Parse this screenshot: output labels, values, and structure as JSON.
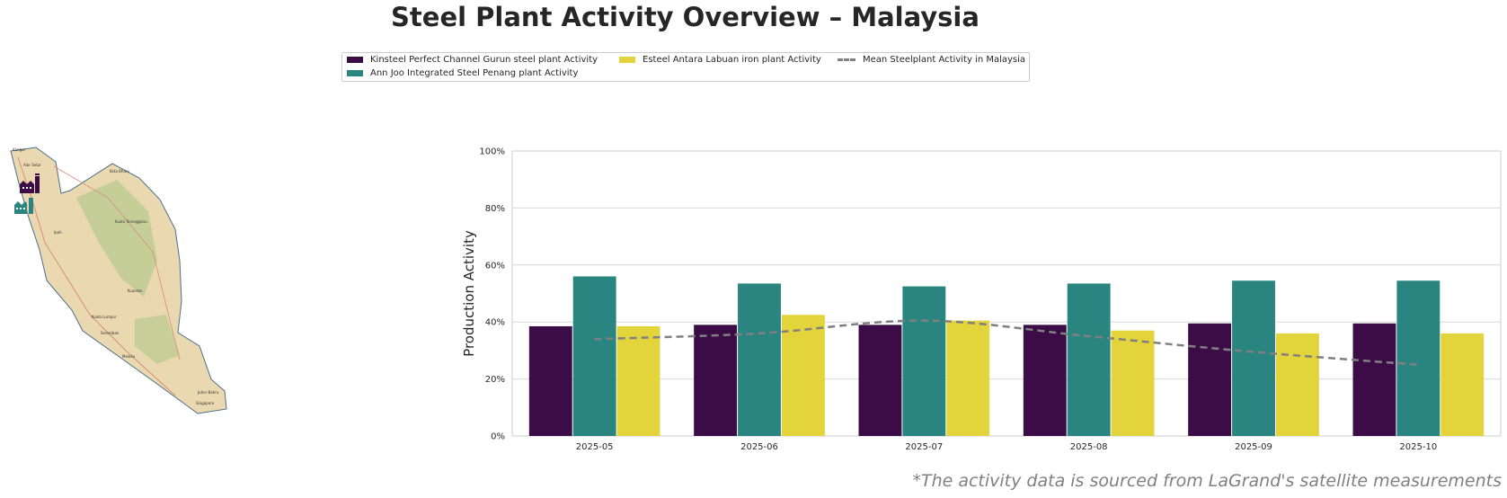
{
  "title": "Steel Plant Activity Overview – Malaysia",
  "legend": {
    "items": [
      {
        "label": "Kinsteel Perfect Channel Gurun steel plant Activity",
        "color": "#3b0c45",
        "kind": "bar"
      },
      {
        "label": "Ann Joo Integrated Steel Penang plant Activity",
        "color": "#2a8580",
        "kind": "bar"
      },
      {
        "label": "Esteel Antara Labuan iron plant Activity",
        "color": "#e4d43c",
        "kind": "bar"
      },
      {
        "label": "Mean Steelplant Activity in Malaysia",
        "color": "#808080",
        "kind": "dashed-line"
      }
    ]
  },
  "map": {
    "labels": [
      "Kangar",
      "Alor Setar",
      "Kota Bharu",
      "Kuala Terengganu",
      "Ipoh",
      "Kuantan",
      "Kuala Lumpur",
      "Seremban",
      "Melaka",
      "Johor Bahru",
      "Singapore"
    ]
  },
  "chart_data": {
    "type": "bar",
    "title": "",
    "xlabel": "",
    "ylabel": "Production Activity",
    "ylim": [
      0,
      100
    ],
    "yticks": [
      "0%",
      "20%",
      "40%",
      "60%",
      "80%",
      "100%"
    ],
    "grid": true,
    "categories": [
      "2025-05",
      "2025-06",
      "2025-07",
      "2025-08",
      "2025-09",
      "2025-10"
    ],
    "series": [
      {
        "name": "Kinsteel Perfect Channel Gurun steel plant Activity",
        "color": "#3b0c45",
        "values": [
          38.5,
          39,
          39,
          39,
          39.5,
          39.5
        ]
      },
      {
        "name": "Ann Joo Integrated Steel Penang plant Activity",
        "color": "#2a8580",
        "values": [
          56,
          53.5,
          52.5,
          53.5,
          54.5,
          54.5
        ]
      },
      {
        "name": "Esteel Antara Labuan iron plant Activity",
        "color": "#e4d43c",
        "values": [
          38.5,
          42.5,
          40.5,
          37,
          36,
          36
        ]
      }
    ],
    "line_series": {
      "name": "Mean Steelplant Activity in Malaysia",
      "color": "#808080",
      "style": "dashed",
      "values": [
        34,
        36,
        40.5,
        35,
        29.5,
        25
      ]
    }
  },
  "footnote": "*The activity data is sourced from LaGrand's satellite measurements"
}
